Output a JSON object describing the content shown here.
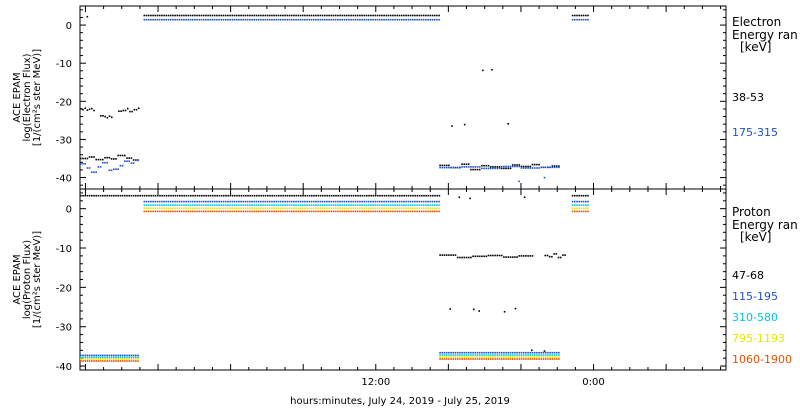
{
  "chart_data": [
    {
      "type": "scatter",
      "panel": "electron",
      "ylabel_lines": [
        "ACE EPAM",
        "log(Electron Flux)",
        "[1/(cm²s ster MeV)]"
      ],
      "ylim": [
        -43,
        5
      ],
      "yticks": [
        0,
        -10,
        -20,
        -30,
        -40
      ],
      "legend": {
        "title_lines": [
          "Electron",
          "Energy ran",
          "[keV]"
        ],
        "placement": "right"
      },
      "series": [
        {
          "name": "38-53",
          "color": "#000000",
          "segments": [
            {
              "x0": -4.3,
              "x1": -3.5,
              "values": [
                -22.0,
                -22.2,
                -21.8,
                -22.3,
                -22.1,
                -21.9,
                -22.4
              ]
            },
            {
              "x0": -3.2,
              "x1": -2.5,
              "values": [
                -23.8,
                -24.0,
                -24.3,
                -23.9,
                -24.2
              ]
            },
            {
              "x0": -2.2,
              "x1": -1.1,
              "values": [
                -22.6,
                -22.4,
                -21.9,
                -22.7,
                -22.2,
                -21.8
              ]
            },
            {
              "x0": -4.3,
              "x1": -1.1,
              "values": [
                -35.0,
                -34.6,
                -35.3,
                -34.8,
                -35.1,
                -34.2,
                -34.9,
                -35.4
              ]
            },
            {
              "x0": -0.8,
              "x1": 15.5,
              "values": [
                2.5
              ]
            },
            {
              "x0": 15.5,
              "x1": 22.1,
              "values": [
                -36.8,
                -37.4,
                -36.5,
                -37.9,
                -36.9,
                -37.2,
                -37.6,
                -36.7,
                -37.1,
                -36.6,
                -37.3,
                -37.0
              ]
            },
            {
              "x0": 22.8,
              "x1": 23.7,
              "values": [
                2.5
              ]
            }
          ],
          "scattered": [
            [
              -3.9,
              2.2
            ],
            [
              16.2,
              -26.5
            ],
            [
              16.9,
              -26.1
            ],
            [
              17.9,
              -11.9
            ],
            [
              18.4,
              -11.7
            ],
            [
              19.3,
              -25.9
            ]
          ]
        },
        {
          "name": "175-315",
          "color": "#1e50c8",
          "segments": [
            {
              "x0": -4.3,
              "x1": -1.1,
              "values": [
                -36.4,
                -37.5,
                -38.6,
                -37.2,
                -36.1,
                -38.1,
                -37.8,
                -36.9,
                -35.7,
                -36.2,
                -35.5
              ]
            },
            {
              "x0": -0.8,
              "x1": 15.5,
              "values": [
                1.4
              ]
            },
            {
              "x0": 15.5,
              "x1": 22.1,
              "values": [
                -37.4,
                -37.2,
                -37.6,
                -37.1,
                -37.5,
                -37.3
              ]
            },
            {
              "x0": 22.8,
              "x1": 23.7,
              "values": [
                1.4
              ]
            }
          ],
          "scattered": [
            [
              19.9,
              -41.0
            ],
            [
              21.3,
              -40.0
            ]
          ]
        }
      ]
    },
    {
      "type": "scatter",
      "panel": "proton",
      "ylabel_lines": [
        "ACE EPAM",
        "log(Proton Flux)",
        "[1/(cm²s ster MeV)]"
      ],
      "ylim": [
        -41,
        5
      ],
      "yticks": [
        0,
        -10,
        -20,
        -30,
        -40
      ],
      "legend": {
        "title_lines": [
          "Proton",
          "Energy ran",
          "[keV]"
        ],
        "placement": "right"
      },
      "series": [
        {
          "name": "47-68",
          "color": "#000000",
          "segments": [
            {
              "x0": -4.3,
              "x1": 15.5,
              "values": [
                3.3
              ]
            },
            {
              "x0": 15.5,
              "x1": 20.6,
              "values": [
                -11.8,
                -12.4,
                -12.1,
                -11.9,
                -12.3,
                -12.0
              ]
            },
            {
              "x0": 21.3,
              "x1": 22.5,
              "values": [
                -11.9,
                -12.2,
                -11.5,
                -12.4,
                -11.8
              ]
            },
            {
              "x0": 22.8,
              "x1": 23.7,
              "values": [
                3.3
              ]
            }
          ],
          "scattered": [
            [
              16.1,
              -25.5
            ],
            [
              17.4,
              -25.6
            ],
            [
              17.7,
              -26.0
            ],
            [
              19.1,
              -26.2
            ],
            [
              19.7,
              -25.4
            ],
            [
              20.2,
              2.9
            ],
            [
              16.6,
              2.9
            ],
            [
              17.2,
              2.6
            ],
            [
              20.6,
              -36.0
            ],
            [
              21.3,
              -36.2
            ]
          ]
        },
        {
          "name": "115-195",
          "color": "#1e50c8",
          "segments": [
            {
              "x0": -4.3,
              "x1": -1.1,
              "values": [
                -37.3
              ]
            },
            {
              "x0": -0.8,
              "x1": 15.5,
              "values": [
                1.8
              ]
            },
            {
              "x0": 15.5,
              "x1": 22.1,
              "values": [
                -36.6
              ]
            },
            {
              "x0": 22.8,
              "x1": 23.7,
              "values": [
                1.8
              ]
            }
          ]
        },
        {
          "name": "310-580",
          "color": "#00c8e6",
          "segments": [
            {
              "x0": -4.3,
              "x1": -1.1,
              "values": [
                -37.8
              ]
            },
            {
              "x0": -0.8,
              "x1": 15.5,
              "values": [
                0.9
              ]
            },
            {
              "x0": 15.5,
              "x1": 22.1,
              "values": [
                -37.2
              ]
            },
            {
              "x0": 22.8,
              "x1": 23.7,
              "values": [
                0.9
              ]
            }
          ]
        },
        {
          "name": "795-1193",
          "color": "#e6e600",
          "segments": [
            {
              "x0": -4.3,
              "x1": -1.1,
              "values": [
                -38.2
              ]
            },
            {
              "x0": -0.8,
              "x1": 15.5,
              "values": [
                0.1
              ]
            },
            {
              "x0": 15.5,
              "x1": 22.1,
              "values": [
                -37.7
              ]
            },
            {
              "x0": 22.8,
              "x1": 23.7,
              "values": [
                0.1
              ]
            }
          ]
        },
        {
          "name": "1060-1900",
          "color": "#e65000",
          "segments": [
            {
              "x0": -4.3,
              "x1": -1.1,
              "values": [
                -38.7
              ]
            },
            {
              "x0": -0.8,
              "x1": 15.5,
              "values": [
                -0.7
              ]
            },
            {
              "x0": 15.5,
              "x1": 22.1,
              "values": [
                -38.2
              ]
            },
            {
              "x0": 22.8,
              "x1": 23.7,
              "values": [
                -0.7
              ]
            }
          ]
        }
      ]
    }
  ],
  "x_axis": {
    "xlim": [
      -4.3,
      31.3
    ],
    "tick_labels": [
      {
        "x": 12,
        "label": "12:00"
      },
      {
        "x": 24,
        "label": "0:00"
      }
    ],
    "major_ticks": [
      -4,
      0,
      4,
      8,
      12,
      16,
      20,
      24,
      28
    ],
    "minor_every_hours": 1,
    "xlabel": "hours:minutes, July 24, 2019 - July 25, 2019"
  }
}
